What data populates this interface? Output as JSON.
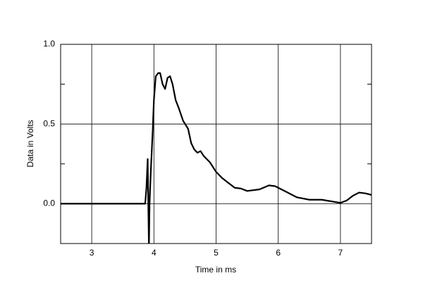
{
  "chart_data": {
    "type": "line",
    "xlabel": "Time in ms",
    "ylabel": "Data in Volts",
    "xlim": [
      2.5,
      7.5
    ],
    "ylim": [
      -0.25,
      1.0
    ],
    "xticks": [
      3,
      4,
      5,
      6,
      7
    ],
    "yticks": [
      {
        "value": 0,
        "label": "0.0"
      },
      0.5,
      {
        "value": 1,
        "label": "1.0"
      }
    ],
    "yminorticks": [
      0.25,
      0.75
    ],
    "grid": true,
    "x": [
      2.5,
      3.8,
      3.86,
      3.88,
      3.9,
      3.91,
      3.92,
      3.93,
      3.95,
      3.98,
      4.0,
      4.03,
      4.07,
      4.1,
      4.14,
      4.18,
      4.22,
      4.26,
      4.3,
      4.35,
      4.4,
      4.47,
      4.55,
      4.6,
      4.65,
      4.7,
      4.75,
      4.8,
      4.9,
      5.0,
      5.1,
      5.2,
      5.3,
      5.4,
      5.5,
      5.7,
      5.85,
      5.95,
      6.1,
      6.3,
      6.5,
      6.7,
      6.85,
      7.0,
      7.1,
      7.2,
      7.3,
      7.4,
      7.5
    ],
    "series": [
      {
        "color": "#000000",
        "values": [
          0,
          0,
          0,
          0.1,
          0.28,
          0,
          -0.28,
          0,
          0.2,
          0.45,
          0.65,
          0.8,
          0.82,
          0.82,
          0.75,
          0.72,
          0.79,
          0.8,
          0.75,
          0.65,
          0.6,
          0.52,
          0.47,
          0.38,
          0.34,
          0.32,
          0.33,
          0.3,
          0.26,
          0.2,
          0.16,
          0.13,
          0.1,
          0.095,
          0.08,
          0.09,
          0.115,
          0.11,
          0.08,
          0.04,
          0.025,
          0.025,
          0.015,
          0.005,
          0.02,
          0.05,
          0.07,
          0.065,
          0.055
        ]
      }
    ]
  }
}
